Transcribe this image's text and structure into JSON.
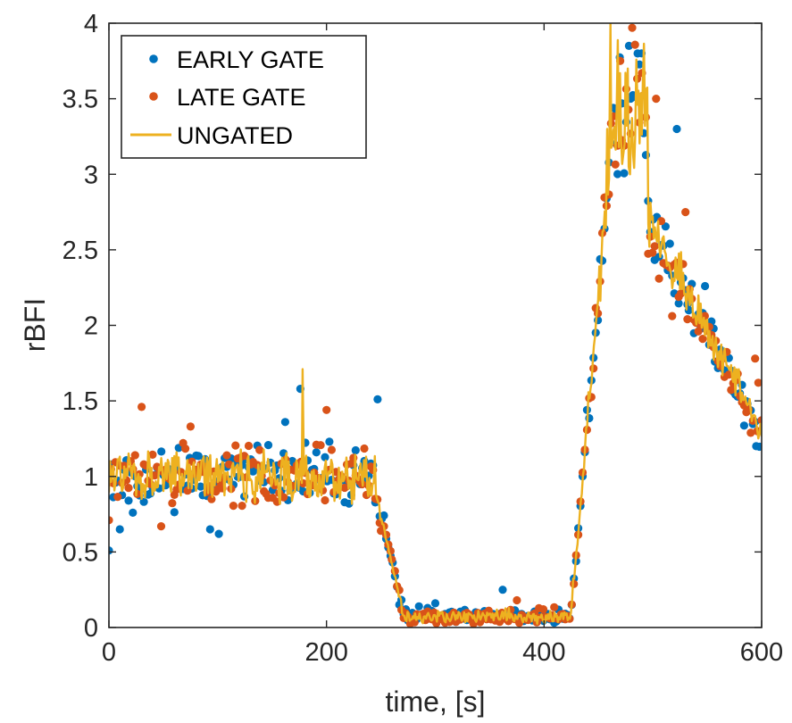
{
  "chart_data": {
    "type": "scatter",
    "xlabel": "time, [s]",
    "ylabel": "rBFI",
    "xlim": [
      0,
      600
    ],
    "ylim": [
      0,
      4
    ],
    "xticks": [
      0,
      200,
      400,
      600
    ],
    "xtick_labels": [
      "0",
      "200",
      "400",
      "600"
    ],
    "yticks": [
      0,
      0.5,
      1,
      1.5,
      2,
      2.5,
      3,
      3.5,
      4
    ],
    "ytick_labels": [
      "0",
      "0.5",
      "1",
      "1.5",
      "2",
      "2.5",
      "3",
      "3.5",
      "4"
    ],
    "grid": false,
    "legend_position": "top-left",
    "phases": [
      {
        "x_start": 0,
        "x_end": 245,
        "level": 1.0,
        "noise": 0.15
      },
      {
        "x_start": 245,
        "x_end": 270,
        "from": 0.9,
        "to": 0.12
      },
      {
        "x_start": 270,
        "x_end": 425,
        "level": 0.07,
        "noise": 0.035
      },
      {
        "x_start": 425,
        "x_end": 465,
        "from": 0.1,
        "to": 3.5
      },
      {
        "x_start": 465,
        "x_end": 495,
        "level": 3.4,
        "noise": 0.3
      },
      {
        "x_start": 495,
        "x_end": 600,
        "from": 2.7,
        "to": 1.3
      }
    ],
    "series": [
      {
        "name": "EARLY GATE",
        "kind": "scatter",
        "color": "#0072BD",
        "n_points": 300,
        "seed": 11,
        "noise_scale": 1.15,
        "highlights": [
          [
            0,
            0.51
          ],
          [
            10,
            0.65
          ],
          [
            22,
            0.76
          ],
          [
            93,
            0.65
          ],
          [
            101,
            0.62
          ],
          [
            162,
            1.36
          ],
          [
            176,
            1.58
          ],
          [
            247,
            1.51
          ],
          [
            300,
            0.16
          ],
          [
            362,
            0.25
          ],
          [
            478,
            3.85
          ],
          [
            486,
            3.8
          ],
          [
            500,
            2.7
          ],
          [
            522,
            3.3
          ],
          [
            533,
            2.1
          ],
          [
            548,
            2.26
          ],
          [
            557,
            1.76
          ],
          [
            572,
            1.7
          ],
          [
            587,
            1.48
          ],
          [
            595,
            1.2
          ]
        ]
      },
      {
        "name": "LATE GATE",
        "kind": "scatter",
        "color": "#D95319",
        "n_points": 300,
        "seed": 29,
        "noise_scale": 1.2,
        "highlights": [
          [
            0,
            0.71
          ],
          [
            30,
            1.46
          ],
          [
            48,
            0.67
          ],
          [
            75,
            1.33
          ],
          [
            200,
            1.44
          ],
          [
            250,
            0.64
          ],
          [
            260,
            0.45
          ],
          [
            375,
            0.18
          ],
          [
            470,
            3.75
          ],
          [
            481,
            3.97
          ],
          [
            490,
            3.67
          ],
          [
            503,
            3.5
          ],
          [
            512,
            2.4
          ],
          [
            530,
            2.75
          ],
          [
            544,
            2.0
          ],
          [
            562,
            1.73
          ],
          [
            578,
            1.68
          ],
          [
            594,
            1.78
          ],
          [
            597,
            1.62
          ]
        ]
      },
      {
        "name": "UNGATED",
        "kind": "line",
        "color": "#EDB120",
        "n_points": 600,
        "seed": 47,
        "noise_scale": 0.8,
        "highlights": [
          [
            175,
            1.0
          ],
          [
            178,
            1.71
          ],
          [
            180,
            1.05
          ],
          [
            458,
            3.3
          ],
          [
            461,
            4.0
          ],
          [
            463,
            3.2
          ],
          [
            474,
            3.2
          ],
          [
            477,
            3.7
          ],
          [
            479,
            3.0
          ]
        ]
      }
    ]
  }
}
